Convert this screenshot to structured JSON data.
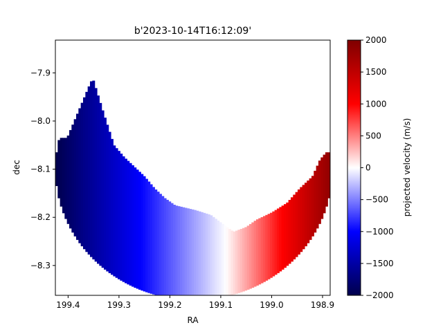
{
  "chart_data": {
    "type": "heatmap",
    "title": "b'2023-10-14T16:12:09'",
    "xlabel": "RA",
    "ylabel": "dec",
    "xlim": [
      199.425,
      198.885
    ],
    "ylim": [
      -8.362,
      -7.832
    ],
    "x_ticks": [
      {
        "value": 199.4,
        "label": "199.4"
      },
      {
        "value": 199.3,
        "label": "199.3"
      },
      {
        "value": 199.2,
        "label": "199.2"
      },
      {
        "value": 199.1,
        "label": "199.1"
      },
      {
        "value": 199.0,
        "label": "199.0"
      },
      {
        "value": 198.9,
        "label": "198.9"
      }
    ],
    "y_ticks": [
      {
        "value": -7.9,
        "label": "−7.9"
      },
      {
        "value": -8.0,
        "label": "−8.0"
      },
      {
        "value": -8.1,
        "label": "−8.1"
      },
      {
        "value": -8.2,
        "label": "−8.2"
      },
      {
        "value": -8.3,
        "label": "−8.3"
      }
    ],
    "colorbar": {
      "label": "projected velocity (m/s)",
      "colormap": "seismic",
      "vmin": -2000,
      "vmax": 2000,
      "ticks": [
        {
          "value": 2000,
          "label": "2000"
        },
        {
          "value": 1500,
          "label": "1500"
        },
        {
          "value": 1000,
          "label": "1000"
        },
        {
          "value": 500,
          "label": "500"
        },
        {
          "value": 0,
          "label": "0"
        },
        {
          "value": -500,
          "label": "−500"
        },
        {
          "value": -1000,
          "label": "−1000"
        },
        {
          "value": -1500,
          "label": "−1500"
        },
        {
          "value": -2000,
          "label": "−2000"
        }
      ]
    },
    "disk": {
      "center_ra": 199.153,
      "center_dec": -8.1,
      "radius_deg": 0.272,
      "velocity_at_left_limb": -2000,
      "velocity_at_right_limb": 1900,
      "zero_velocity_ra": 199.09
    }
  }
}
